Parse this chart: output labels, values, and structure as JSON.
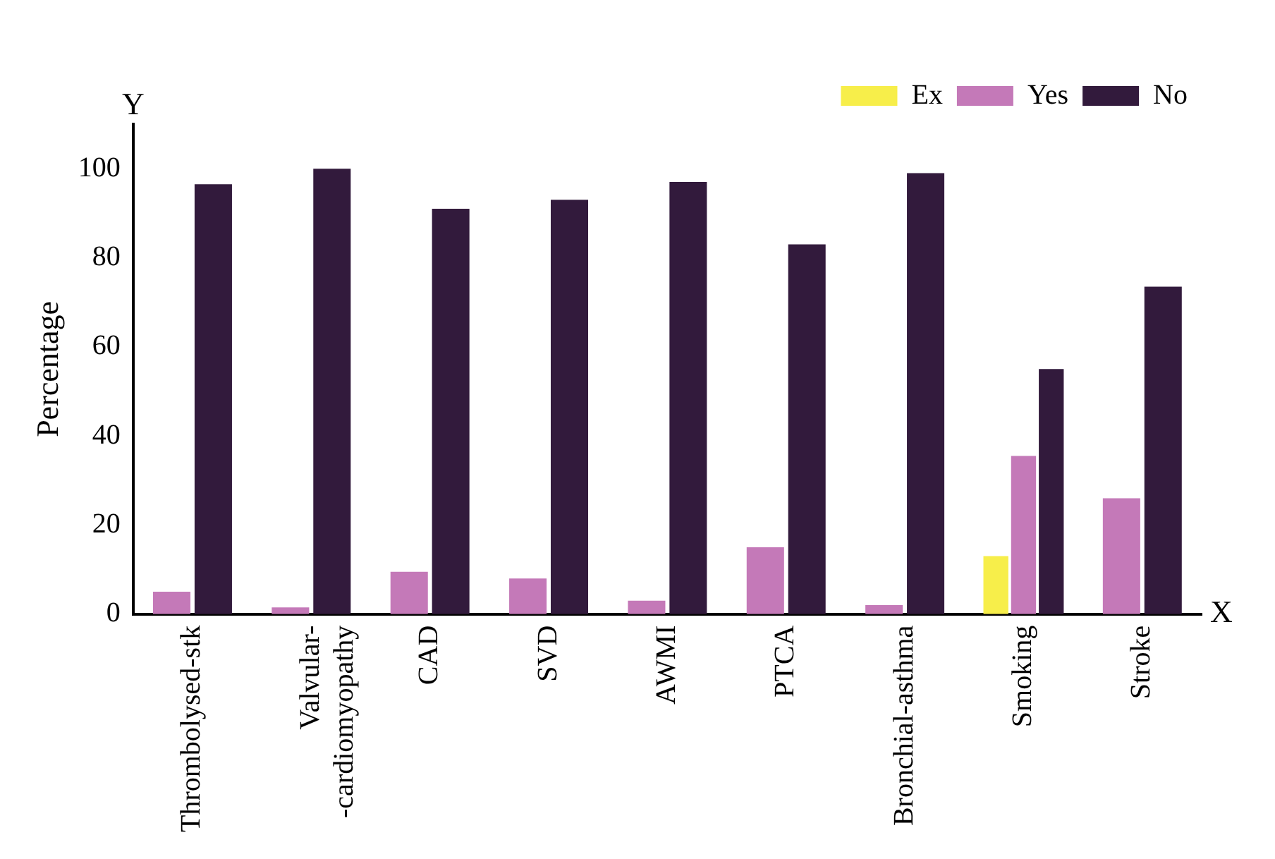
{
  "chart_data": {
    "type": "bar",
    "ylabel": "Percentage",
    "categories": [
      "Thrombolysed-stk",
      "Valvular-\n-cardiomyopathy",
      "CAD",
      "SVD",
      "AWMI",
      "PTCA",
      "Bronchial-asthma",
      "Smoking",
      "Stroke"
    ],
    "series": [
      {
        "name": "Ex",
        "color": "#f7ee4a",
        "values": [
          null,
          null,
          null,
          null,
          null,
          null,
          null,
          13,
          null
        ]
      },
      {
        "name": "Yes",
        "color": "#c479b8",
        "values": [
          5,
          1.5,
          9.5,
          8,
          3,
          15,
          2,
          35.5,
          26
        ]
      },
      {
        "name": "No",
        "color": "#321a3c",
        "values": [
          96.5,
          100,
          91,
          93,
          97,
          83,
          99,
          55,
          73.5
        ]
      }
    ],
    "ylim": [
      0,
      110
    ],
    "yticks": [
      0,
      20,
      40,
      60,
      80,
      100
    ],
    "grid": false,
    "legend": "top right",
    "annotations": [
      "Y",
      "X"
    ]
  }
}
